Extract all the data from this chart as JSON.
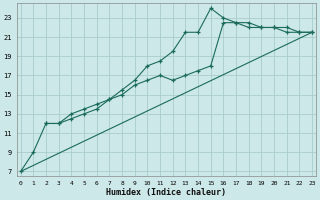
{
  "xlabel": "Humidex (Indice chaleur)",
  "bg_color": "#cde8e8",
  "grid_color": "#aacccc",
  "line_color": "#1a6b5a",
  "x_ticks": [
    0,
    1,
    2,
    3,
    4,
    5,
    6,
    7,
    8,
    9,
    10,
    11,
    12,
    13,
    14,
    15,
    16,
    17,
    18,
    19,
    20,
    21,
    22,
    23
  ],
  "y_ticks": [
    7,
    9,
    11,
    13,
    15,
    17,
    19,
    21,
    23
  ],
  "xlim": [
    -0.3,
    23.3
  ],
  "ylim": [
    6.5,
    24.5
  ],
  "line1_x": [
    0,
    1,
    2,
    3,
    4,
    5,
    6,
    7,
    8,
    9,
    10,
    11,
    12,
    13,
    14,
    15,
    16,
    17,
    18,
    19,
    20,
    21,
    22,
    23
  ],
  "line1_y": [
    7,
    9,
    12,
    12,
    12.5,
    13,
    13.5,
    14.5,
    15.5,
    16.5,
    18,
    18.5,
    19.5,
    21.5,
    21.5,
    24,
    23,
    22.5,
    22.5,
    22,
    22,
    21.5,
    21.5,
    21.5
  ],
  "line2_x": [
    2,
    3,
    4,
    5,
    6,
    7,
    8,
    9,
    10,
    11,
    12,
    13,
    14,
    15,
    16,
    17,
    18,
    19,
    20,
    21,
    22,
    23
  ],
  "line2_y": [
    12,
    12,
    13,
    13.5,
    14,
    14.5,
    15,
    16,
    16.5,
    17,
    16.5,
    17,
    17.5,
    18,
    22.5,
    22.5,
    22,
    22,
    22,
    22,
    21.5,
    21.5
  ],
  "line3_x": [
    0,
    23
  ],
  "line3_y": [
    7,
    21.5
  ]
}
